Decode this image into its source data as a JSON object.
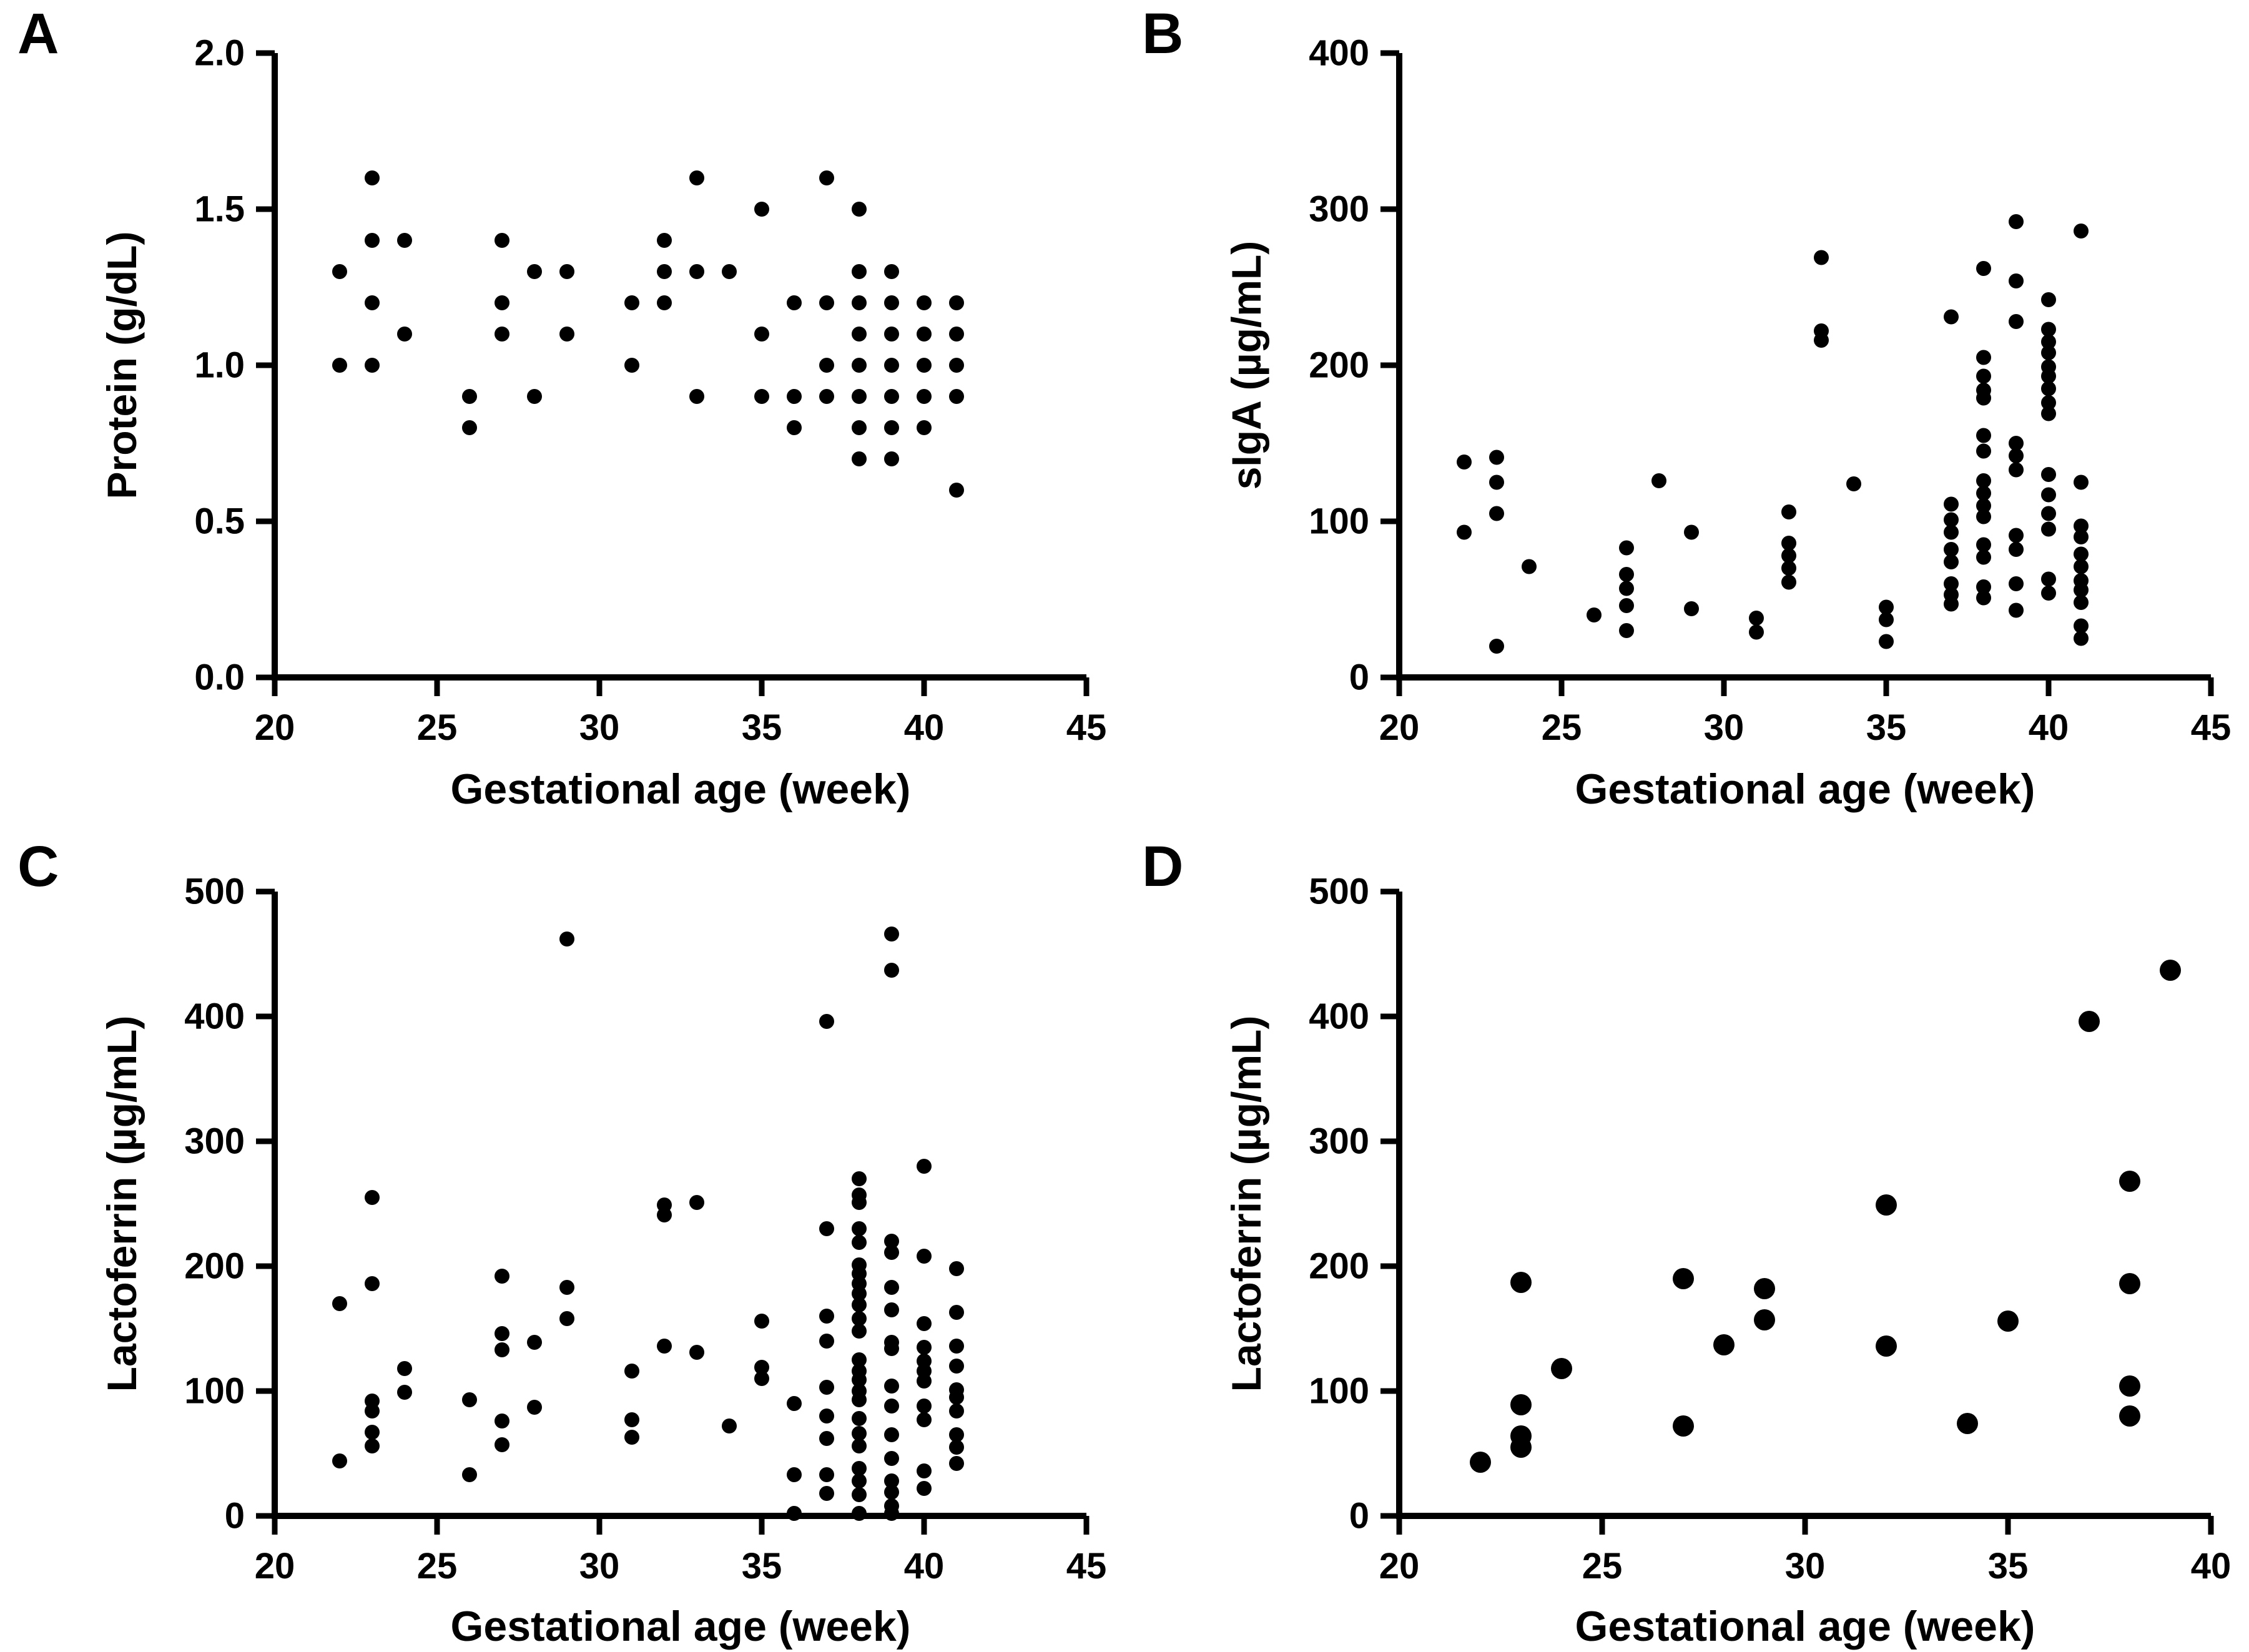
{
  "figure": {
    "background": "#ffffff",
    "ink": "#000000",
    "description_text": "Four-panel scatter figure of human milk components versus gestational age"
  },
  "chart_data": [
    {
      "type": "scatter",
      "panel_letter": "A",
      "xlabel": "Gestational age (week)",
      "ylabel": "Protein (g/dL)",
      "xlim": [
        20,
        45
      ],
      "ylim": [
        0,
        2
      ],
      "xticks": [
        "20",
        "25",
        "30",
        "35",
        "40",
        "45"
      ],
      "yticks": [
        "0.0",
        "0.5",
        "1.0",
        "1.5",
        "2.0"
      ],
      "grid": false,
      "legend": "none",
      "marker_color": "#000000",
      "marker_radius": 12,
      "points": [
        [
          22,
          1.3
        ],
        [
          22,
          1.0
        ],
        [
          23,
          1.6
        ],
        [
          23,
          1.4
        ],
        [
          23,
          1.2
        ],
        [
          23,
          1.0
        ],
        [
          24,
          1.4
        ],
        [
          24,
          1.1
        ],
        [
          26,
          0.9
        ],
        [
          26,
          0.8
        ],
        [
          27,
          1.4
        ],
        [
          27,
          1.2
        ],
        [
          27,
          1.1
        ],
        [
          28,
          1.3
        ],
        [
          28,
          0.9
        ],
        [
          29,
          1.3
        ],
        [
          29,
          1.1
        ],
        [
          31,
          1.2
        ],
        [
          31,
          1.0
        ],
        [
          32,
          1.4
        ],
        [
          32,
          1.3
        ],
        [
          32,
          1.2
        ],
        [
          33,
          1.6
        ],
        [
          33,
          1.3
        ],
        [
          33,
          0.9
        ],
        [
          34,
          1.3
        ],
        [
          35,
          1.5
        ],
        [
          35,
          1.1
        ],
        [
          35,
          0.9
        ],
        [
          36,
          1.2
        ],
        [
          36,
          0.9
        ],
        [
          36,
          0.8
        ],
        [
          37,
          1.6
        ],
        [
          37,
          1.2
        ],
        [
          37,
          1.0
        ],
        [
          37,
          0.9
        ],
        [
          38,
          1.5
        ],
        [
          38,
          1.3
        ],
        [
          38,
          1.2
        ],
        [
          38,
          1.1
        ],
        [
          38,
          1.0
        ],
        [
          38,
          0.9
        ],
        [
          38,
          0.8
        ],
        [
          38,
          0.7
        ],
        [
          39,
          1.3
        ],
        [
          39,
          1.2
        ],
        [
          39,
          1.1
        ],
        [
          39,
          1.0
        ],
        [
          39,
          0.9
        ],
        [
          39,
          0.8
        ],
        [
          39,
          0.7
        ],
        [
          40,
          1.2
        ],
        [
          40,
          1.1
        ],
        [
          40,
          1.0
        ],
        [
          40,
          0.9
        ],
        [
          40,
          0.8
        ],
        [
          41,
          1.2
        ],
        [
          41,
          1.1
        ],
        [
          41,
          1.0
        ],
        [
          41,
          0.9
        ],
        [
          41,
          0.6
        ]
      ]
    },
    {
      "type": "scatter",
      "panel_letter": "B",
      "xlabel": "Gestational age (week)",
      "ylabel": "sIgA (µg/mL)",
      "xlim": [
        20,
        45
      ],
      "ylim": [
        0,
        400
      ],
      "xticks": [
        "20",
        "25",
        "30",
        "35",
        "40",
        "45"
      ],
      "yticks": [
        "0",
        "100",
        "200",
        "300",
        "400"
      ],
      "grid": false,
      "legend": "none",
      "marker_color": "#000000",
      "marker_radius": 12,
      "points": [
        [
          22,
          138
        ],
        [
          22,
          93
        ],
        [
          23,
          141
        ],
        [
          23,
          125
        ],
        [
          23,
          105
        ],
        [
          23,
          20
        ],
        [
          24,
          71
        ],
        [
          26,
          40
        ],
        [
          27,
          83
        ],
        [
          27,
          66
        ],
        [
          27,
          57
        ],
        [
          27,
          46
        ],
        [
          27,
          30
        ],
        [
          28,
          126
        ],
        [
          29,
          93
        ],
        [
          29,
          44
        ],
        [
          31,
          38
        ],
        [
          31,
          29
        ],
        [
          32,
          106
        ],
        [
          32,
          86
        ],
        [
          32,
          78
        ],
        [
          32,
          70
        ],
        [
          32,
          61
        ],
        [
          33,
          269
        ],
        [
          33,
          222
        ],
        [
          33,
          216
        ],
        [
          34,
          124
        ],
        [
          35,
          45
        ],
        [
          35,
          37
        ],
        [
          35,
          23
        ],
        [
          37,
          231
        ],
        [
          37,
          111
        ],
        [
          37,
          101
        ],
        [
          37,
          93
        ],
        [
          37,
          82
        ],
        [
          37,
          74
        ],
        [
          37,
          60
        ],
        [
          37,
          53
        ],
        [
          37,
          47
        ],
        [
          38,
          262
        ],
        [
          38,
          205
        ],
        [
          38,
          193
        ],
        [
          38,
          184
        ],
        [
          38,
          179
        ],
        [
          38,
          155
        ],
        [
          38,
          145
        ],
        [
          38,
          126
        ],
        [
          38,
          118
        ],
        [
          38,
          110
        ],
        [
          38,
          103
        ],
        [
          38,
          85
        ],
        [
          38,
          77
        ],
        [
          38,
          58
        ],
        [
          38,
          51
        ],
        [
          39,
          292
        ],
        [
          39,
          254
        ],
        [
          39,
          228
        ],
        [
          39,
          150
        ],
        [
          39,
          142
        ],
        [
          39,
          133
        ],
        [
          39,
          91
        ],
        [
          39,
          82
        ],
        [
          39,
          60
        ],
        [
          39,
          43
        ],
        [
          40,
          242
        ],
        [
          40,
          223
        ],
        [
          40,
          215
        ],
        [
          40,
          208
        ],
        [
          40,
          199
        ],
        [
          40,
          193
        ],
        [
          40,
          185
        ],
        [
          40,
          176
        ],
        [
          40,
          169
        ],
        [
          40,
          130
        ],
        [
          40,
          117
        ],
        [
          40,
          105
        ],
        [
          40,
          95
        ],
        [
          40,
          63
        ],
        [
          40,
          54
        ],
        [
          41,
          286
        ],
        [
          41,
          125
        ],
        [
          41,
          97
        ],
        [
          41,
          90
        ],
        [
          41,
          79
        ],
        [
          41,
          71
        ],
        [
          41,
          62
        ],
        [
          41,
          56
        ],
        [
          41,
          48
        ],
        [
          41,
          33
        ],
        [
          41,
          25
        ]
      ]
    },
    {
      "type": "scatter",
      "panel_letter": "C",
      "xlabel": "Gestational age (week)",
      "ylabel": "Lactoferrin (µg/mL)",
      "xlim": [
        20,
        45
      ],
      "ylim": [
        0,
        500
      ],
      "xticks": [
        "20",
        "25",
        "30",
        "35",
        "40",
        "45"
      ],
      "yticks": [
        "0",
        "100",
        "200",
        "300",
        "400",
        "500"
      ],
      "grid": false,
      "legend": "none",
      "marker_color": "#000000",
      "marker_radius": 12,
      "points": [
        [
          22,
          170
        ],
        [
          22,
          44
        ],
        [
          23,
          255
        ],
        [
          23,
          186
        ],
        [
          23,
          92
        ],
        [
          23,
          84
        ],
        [
          23,
          67
        ],
        [
          23,
          56
        ],
        [
          24,
          118
        ],
        [
          24,
          99
        ],
        [
          26,
          93
        ],
        [
          26,
          33
        ],
        [
          27,
          192
        ],
        [
          27,
          146
        ],
        [
          27,
          133
        ],
        [
          27,
          76
        ],
        [
          27,
          57
        ],
        [
          28,
          139
        ],
        [
          28,
          87
        ],
        [
          29,
          462
        ],
        [
          29,
          183
        ],
        [
          29,
          158
        ],
        [
          31,
          116
        ],
        [
          31,
          77
        ],
        [
          31,
          63
        ],
        [
          32,
          249
        ],
        [
          32,
          241
        ],
        [
          32,
          136
        ],
        [
          33,
          251
        ],
        [
          33,
          131
        ],
        [
          34,
          72
        ],
        [
          35,
          156
        ],
        [
          35,
          119
        ],
        [
          35,
          110
        ],
        [
          36,
          90
        ],
        [
          36,
          33
        ],
        [
          36,
          2
        ],
        [
          37,
          396
        ],
        [
          37,
          230
        ],
        [
          37,
          160
        ],
        [
          37,
          140
        ],
        [
          37,
          103
        ],
        [
          37,
          80
        ],
        [
          37,
          62
        ],
        [
          37,
          33
        ],
        [
          37,
          18
        ],
        [
          38,
          270
        ],
        [
          38,
          257
        ],
        [
          38,
          251
        ],
        [
          38,
          230
        ],
        [
          38,
          219
        ],
        [
          38,
          201
        ],
        [
          38,
          194
        ],
        [
          38,
          186
        ],
        [
          38,
          178
        ],
        [
          38,
          169
        ],
        [
          38,
          158
        ],
        [
          38,
          148
        ],
        [
          38,
          125
        ],
        [
          38,
          116
        ],
        [
          38,
          109
        ],
        [
          38,
          100
        ],
        [
          38,
          93
        ],
        [
          38,
          78
        ],
        [
          38,
          66
        ],
        [
          38,
          56
        ],
        [
          38,
          38
        ],
        [
          38,
          28
        ],
        [
          38,
          17
        ],
        [
          38,
          2
        ],
        [
          39,
          466
        ],
        [
          39,
          437
        ],
        [
          39,
          220
        ],
        [
          39,
          211
        ],
        [
          39,
          183
        ],
        [
          39,
          165
        ],
        [
          39,
          139
        ],
        [
          39,
          134
        ],
        [
          39,
          104
        ],
        [
          39,
          88
        ],
        [
          39,
          65
        ],
        [
          39,
          46
        ],
        [
          39,
          28
        ],
        [
          39,
          19
        ],
        [
          39,
          8
        ],
        [
          39,
          2
        ],
        [
          40,
          280
        ],
        [
          40,
          208
        ],
        [
          40,
          154
        ],
        [
          40,
          135
        ],
        [
          40,
          124
        ],
        [
          40,
          116
        ],
        [
          40,
          108
        ],
        [
          40,
          88
        ],
        [
          40,
          77
        ],
        [
          40,
          36
        ],
        [
          40,
          22
        ],
        [
          41,
          198
        ],
        [
          41,
          163
        ],
        [
          41,
          136
        ],
        [
          41,
          120
        ],
        [
          41,
          101
        ],
        [
          41,
          95
        ],
        [
          41,
          84
        ],
        [
          41,
          65
        ],
        [
          41,
          55
        ],
        [
          41,
          42
        ]
      ]
    },
    {
      "type": "scatter",
      "panel_letter": "D",
      "xlabel": "Gestational age (week)",
      "ylabel": "Lactoferrin (µg/mL)",
      "xlim": [
        20,
        40
      ],
      "ylim": [
        0,
        500
      ],
      "xticks": [
        "20",
        "25",
        "30",
        "35",
        "40"
      ],
      "yticks": [
        "0",
        "100",
        "200",
        "300",
        "400",
        "500"
      ],
      "grid": false,
      "legend": "none",
      "marker_color": "#000000",
      "marker_radius": 17,
      "points": [
        [
          22,
          43
        ],
        [
          23,
          187
        ],
        [
          23,
          89
        ],
        [
          23,
          64
        ],
        [
          23,
          55
        ],
        [
          24,
          118
        ],
        [
          27,
          190
        ],
        [
          27,
          72
        ],
        [
          28,
          137
        ],
        [
          29,
          182
        ],
        [
          29,
          157
        ],
        [
          32,
          249
        ],
        [
          32,
          136
        ],
        [
          34,
          74
        ],
        [
          35,
          156
        ],
        [
          37,
          396
        ],
        [
          38,
          268
        ],
        [
          38,
          186
        ],
        [
          38,
          104
        ],
        [
          38,
          80
        ],
        [
          39,
          437
        ]
      ]
    }
  ]
}
